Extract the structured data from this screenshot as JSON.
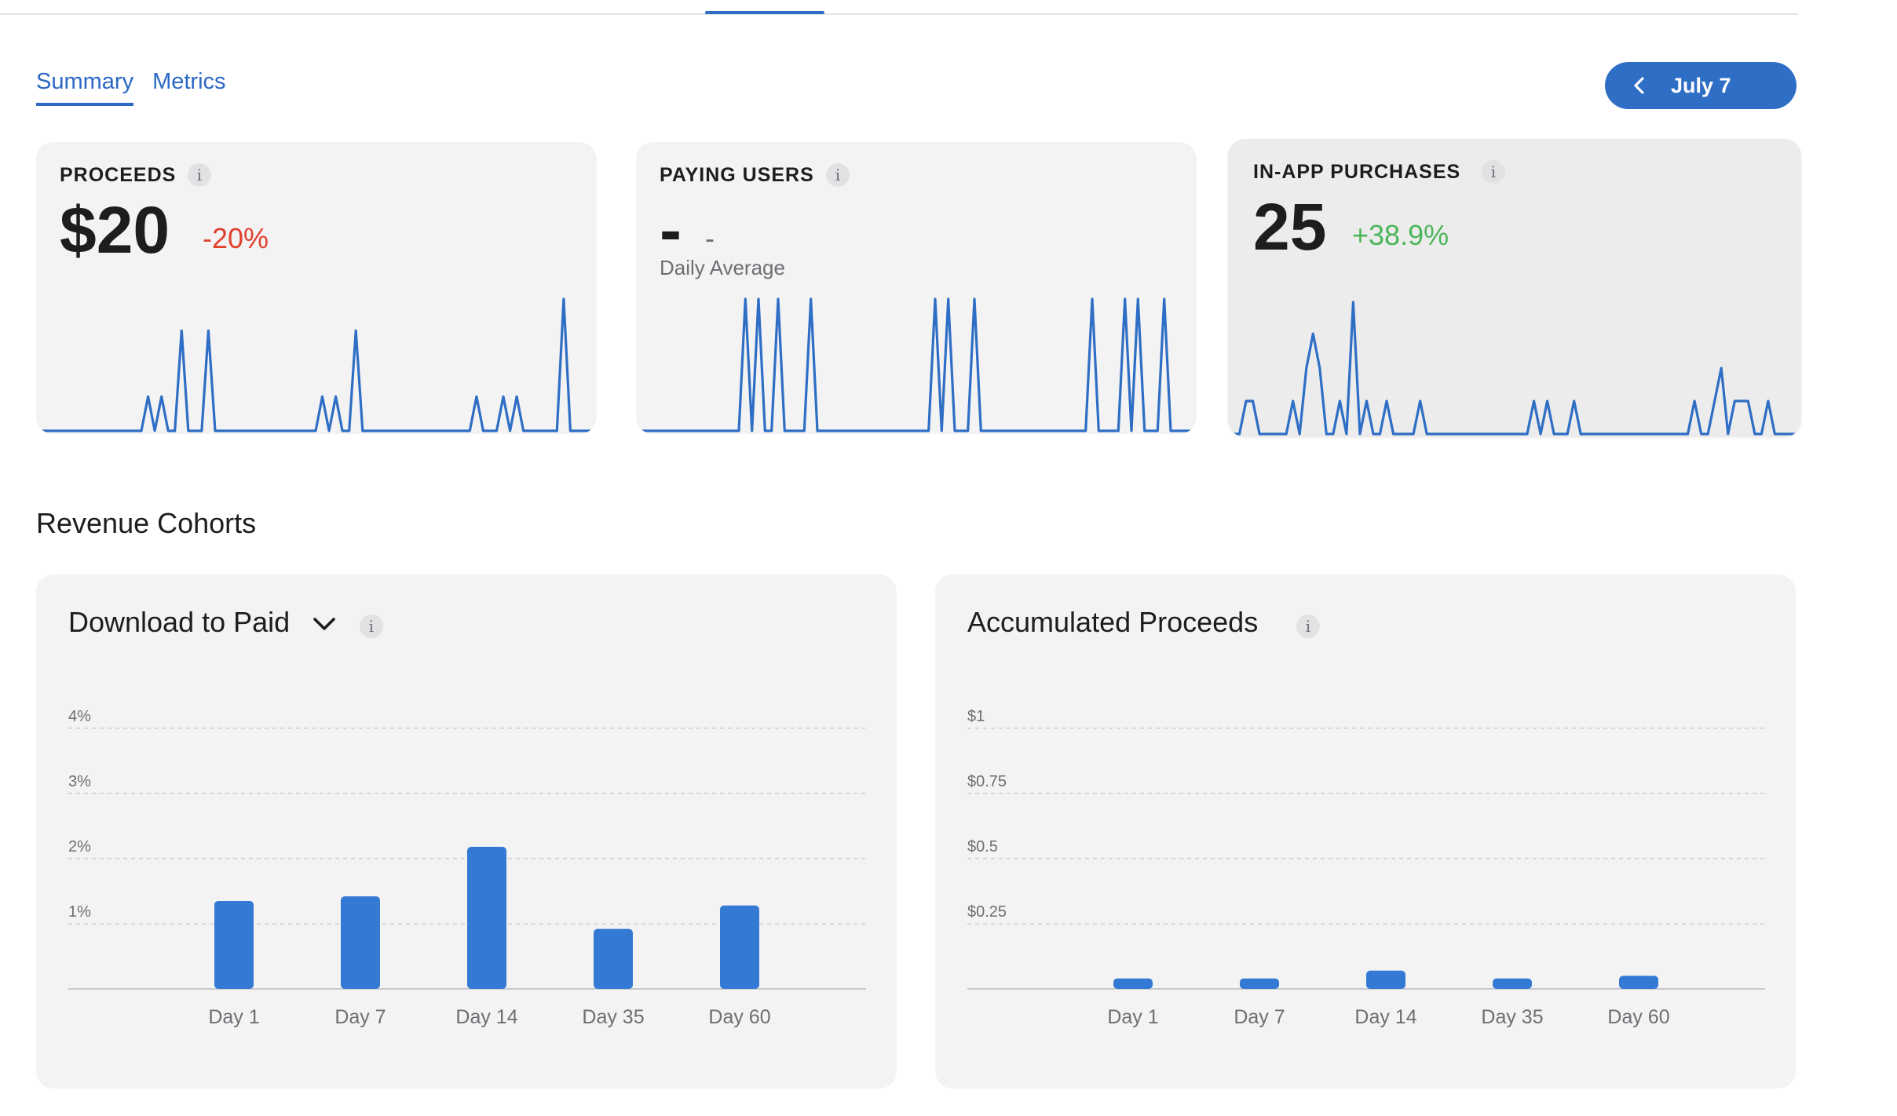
{
  "tabs": [
    {
      "label": "Summary",
      "active": true
    },
    {
      "label": "Metrics",
      "active": false
    }
  ],
  "date_picker": {
    "label": "July 7",
    "icon": "chevron-left-icon"
  },
  "kpis": [
    {
      "title": "PROCEEDS",
      "value": "$20",
      "change": "-20%",
      "change_color": "#e0412f",
      "sparkline": [
        0,
        0,
        0,
        0,
        0,
        0,
        0,
        0,
        0,
        0,
        0,
        0,
        0,
        0,
        0,
        0,
        0.26,
        0,
        0.26,
        0,
        0,
        0.76,
        0,
        0,
        0,
        0.76,
        0,
        0,
        0,
        0,
        0,
        0,
        0,
        0,
        0,
        0,
        0,
        0,
        0,
        0,
        0,
        0,
        0.26,
        0,
        0.26,
        0,
        0,
        0.76,
        0,
        0,
        0,
        0,
        0,
        0,
        0,
        0,
        0,
        0,
        0,
        0,
        0,
        0,
        0,
        0,
        0,
        0.26,
        0,
        0,
        0,
        0.26,
        0,
        0.26,
        0,
        0,
        0,
        0,
        0,
        0,
        1,
        0,
        0,
        0,
        0
      ]
    },
    {
      "title": "PAYING USERS",
      "value": "-",
      "small_value": "-",
      "subtitle": "Daily Average",
      "sparkline": [
        0,
        0,
        0,
        0,
        0,
        0,
        0,
        0,
        0,
        0,
        0,
        0,
        0,
        0,
        0,
        0,
        1,
        0,
        1,
        0,
        0,
        1,
        0,
        0,
        0,
        0,
        1,
        0,
        0,
        0,
        0,
        0,
        0,
        0,
        0,
        0,
        0,
        0,
        0,
        0,
        0,
        0,
        0,
        0,
        0,
        1,
        0,
        1,
        0,
        0,
        0,
        1,
        0,
        0,
        0,
        0,
        0,
        0,
        0,
        0,
        0,
        0,
        0,
        0,
        0,
        0,
        0,
        0,
        0,
        1,
        0,
        0,
        0,
        0,
        1,
        0,
        1,
        0,
        0,
        0,
        1,
        0,
        0,
        0,
        0
      ]
    },
    {
      "title": "IN-APP PURCHASES",
      "value": "25",
      "change": "+38.9%",
      "change_color": "#4cb559",
      "sparkline": [
        0,
        0,
        0.25,
        0.25,
        0,
        0,
        0,
        0,
        0,
        0.25,
        0,
        0.5,
        0.76,
        0.5,
        0,
        0,
        0.25,
        0,
        1,
        0,
        0.25,
        0,
        0,
        0.25,
        0,
        0,
        0,
        0,
        0.25,
        0,
        0,
        0,
        0,
        0,
        0,
        0,
        0,
        0,
        0,
        0,
        0,
        0,
        0,
        0,
        0,
        0.25,
        0,
        0.25,
        0,
        0,
        0,
        0.25,
        0,
        0,
        0,
        0,
        0,
        0,
        0,
        0,
        0,
        0,
        0,
        0,
        0,
        0,
        0,
        0,
        0,
        0.25,
        0,
        0,
        0.25,
        0.5,
        0,
        0.25,
        0.25,
        0.25,
        0,
        0,
        0.25,
        0,
        0,
        0,
        0
      ]
    }
  ],
  "section_title": "Revenue Cohorts",
  "charts": [
    {
      "title": "Download to Paid",
      "has_dropdown": true
    },
    {
      "title": "Accumulated Proceeds",
      "has_dropdown": false
    }
  ],
  "chart_data": [
    {
      "type": "bar",
      "title": "Download to Paid",
      "categories": [
        "Day 1",
        "Day 7",
        "Day 14",
        "Day 35",
        "Day 60"
      ],
      "values": [
        1.35,
        1.42,
        2.18,
        0.92,
        1.28
      ],
      "unit": "%",
      "yticks": [
        "1%",
        "2%",
        "3%",
        "4%"
      ],
      "ylim": [
        0,
        4
      ],
      "grid": true,
      "bar_color": "#3479d4"
    },
    {
      "type": "bar",
      "title": "Accumulated Proceeds",
      "categories": [
        "Day 1",
        "Day 7",
        "Day 14",
        "Day 35",
        "Day 60"
      ],
      "values": [
        0.04,
        0.04,
        0.07,
        0.04,
        0.05
      ],
      "unit": "$",
      "yticks": [
        "$0.25",
        "$0.5",
        "$0.75",
        "$1"
      ],
      "ylim": [
        0,
        1
      ],
      "grid": true,
      "bar_color": "#3479d4"
    }
  ]
}
